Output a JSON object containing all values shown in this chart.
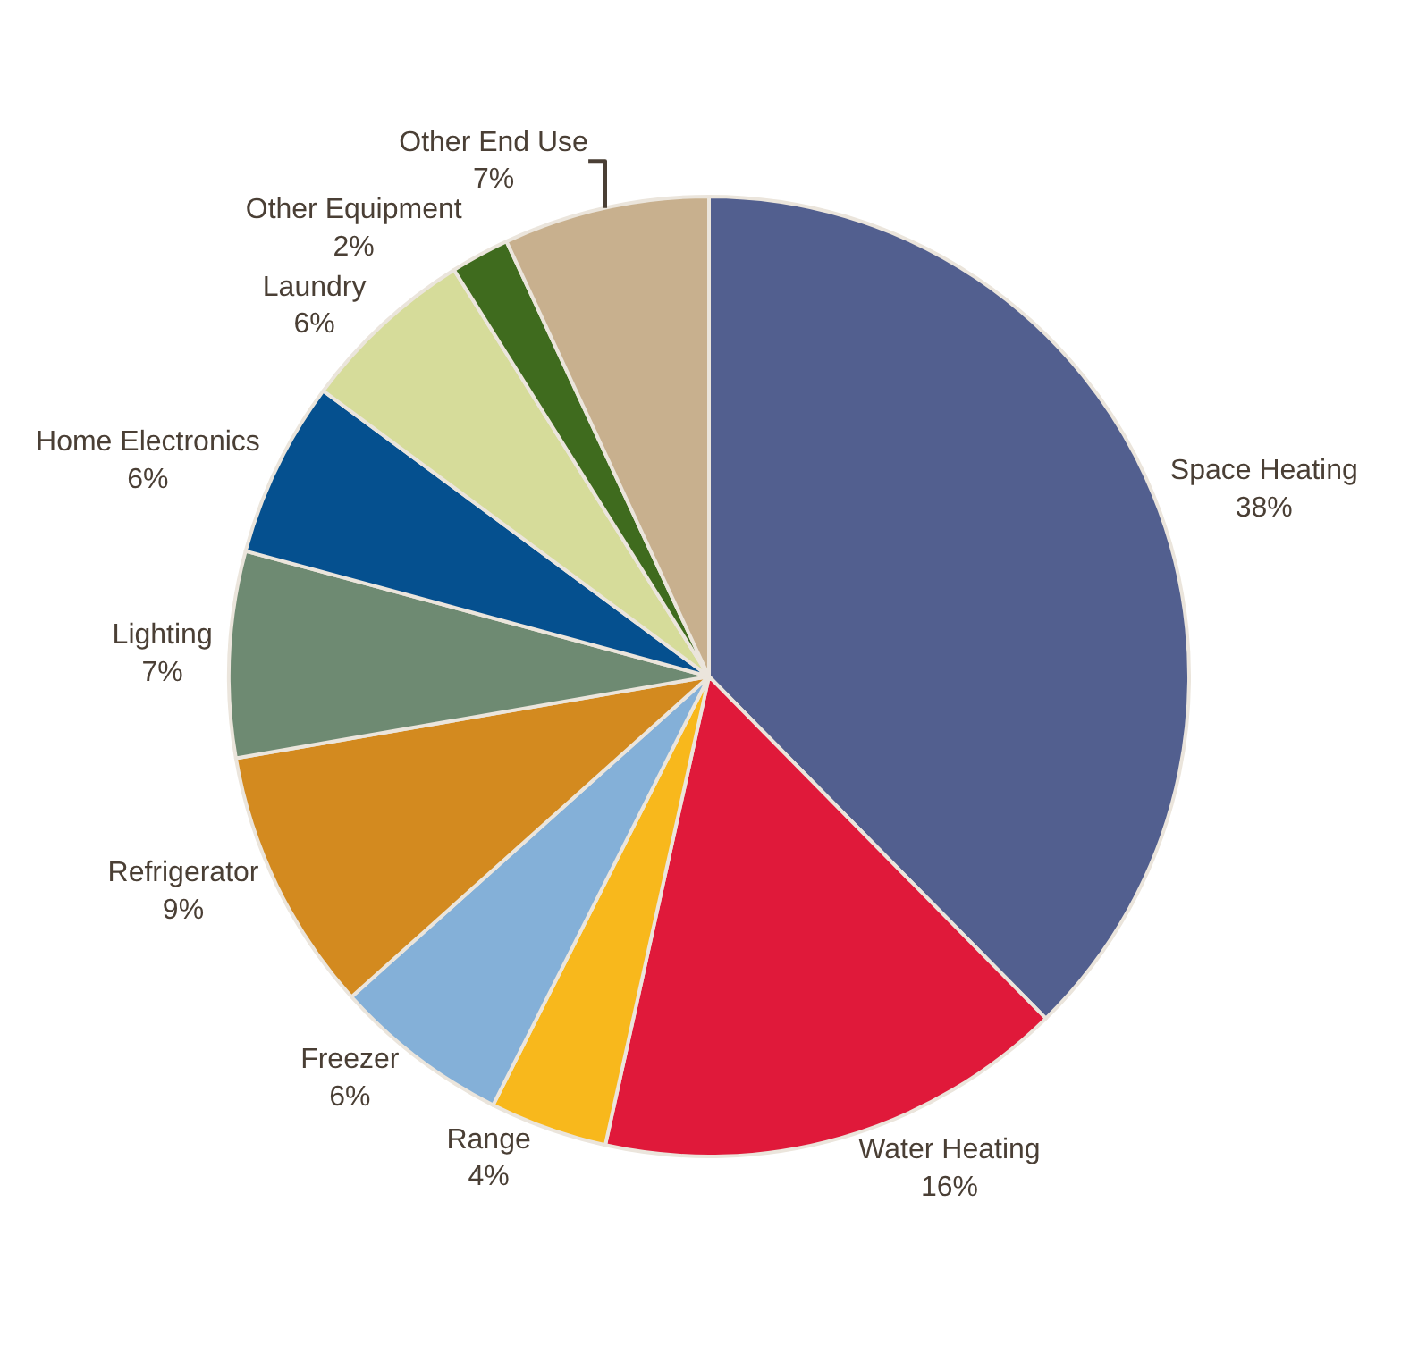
{
  "chart_data": {
    "type": "pie",
    "categories": [
      "Space Heating",
      "Water Heating",
      "Range",
      "Freezer",
      "Refrigerator",
      "Lighting",
      "Home Electronics",
      "Laundry",
      "Other Equipment",
      "Other End Use"
    ],
    "values": [
      38,
      16,
      4,
      6,
      9,
      7,
      6,
      6,
      2,
      7
    ],
    "value_labels": [
      "38%",
      "16%",
      "4%",
      "6%",
      "9%",
      "7%",
      "6%",
      "6%",
      "2%",
      "7%"
    ],
    "colors": [
      "#525f8f",
      "#e0193a",
      "#f8b81c",
      "#84b0d8",
      "#d38a1f",
      "#6e8a72",
      "#05508f",
      "#d6dc9a",
      "#3f6b1e",
      "#c8b08e"
    ],
    "legend": false
  }
}
